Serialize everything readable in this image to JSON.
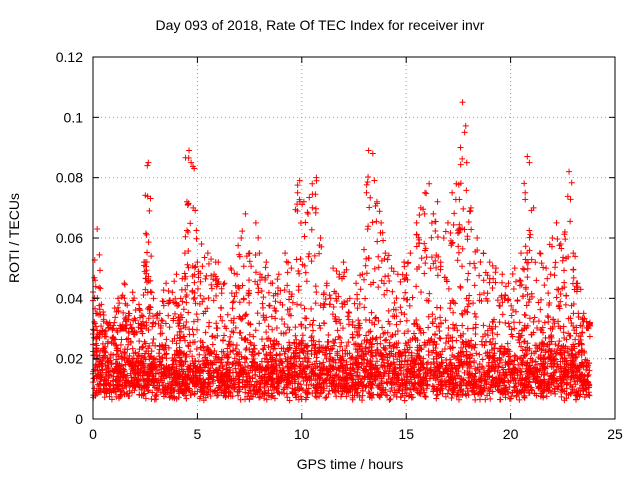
{
  "chart_data": {
    "type": "scatter",
    "title": "Day 093 of 2018, Rate Of TEC Index for receiver invr",
    "xlabel": "GPS time / hours",
    "ylabel": "ROTI / TECUs",
    "xlim": [
      0,
      25
    ],
    "ylim": [
      0,
      0.12
    ],
    "xticks": [
      0,
      5,
      10,
      15,
      20,
      25
    ],
    "xtick_labels": [
      "0",
      "5",
      "10",
      "15",
      "20",
      "25"
    ],
    "yticks": [
      0,
      0.02,
      0.04,
      0.06,
      0.08,
      0.1,
      0.12
    ],
    "ytick_labels": [
      "0",
      "0.02",
      "0.04",
      "0.06",
      "0.08",
      "0.1",
      "0.12"
    ],
    "grid": true,
    "marker": "+",
    "color": "#ff0000",
    "series": [
      {
        "name": "ROTI",
        "points": [
          [
            0.0,
            0.015
          ],
          [
            0.1,
            0.046
          ],
          [
            0.2,
            0.063
          ],
          [
            0.3,
            0.028
          ],
          [
            0.4,
            0.038
          ],
          [
            0.6,
            0.022
          ],
          [
            0.8,
            0.032
          ],
          [
            1.0,
            0.025
          ],
          [
            1.2,
            0.04
          ],
          [
            1.4,
            0.03
          ],
          [
            1.5,
            0.045
          ],
          [
            1.7,
            0.035
          ],
          [
            1.9,
            0.042
          ],
          [
            2.0,
            0.028
          ],
          [
            2.2,
            0.038
          ],
          [
            2.4,
            0.034
          ],
          [
            2.5,
            0.052
          ],
          [
            2.6,
            0.084
          ],
          [
            2.65,
            0.085
          ],
          [
            2.7,
            0.069
          ],
          [
            2.9,
            0.04
          ],
          [
            3.2,
            0.035
          ],
          [
            3.5,
            0.045
          ],
          [
            3.8,
            0.042
          ],
          [
            4.0,
            0.048
          ],
          [
            4.2,
            0.04
          ],
          [
            4.4,
            0.055
          ],
          [
            4.5,
            0.072
          ],
          [
            4.6,
            0.089
          ],
          [
            4.7,
            0.085
          ],
          [
            4.8,
            0.07
          ],
          [
            5.0,
            0.052
          ],
          [
            5.2,
            0.058
          ],
          [
            5.5,
            0.055
          ],
          [
            5.8,
            0.048
          ],
          [
            6.0,
            0.052
          ],
          [
            6.3,
            0.045
          ],
          [
            6.6,
            0.05
          ],
          [
            6.9,
            0.048
          ],
          [
            7.1,
            0.06
          ],
          [
            7.3,
            0.068
          ],
          [
            7.5,
            0.055
          ],
          [
            7.8,
            0.065
          ],
          [
            8.0,
            0.048
          ],
          [
            8.3,
            0.052
          ],
          [
            8.6,
            0.045
          ],
          [
            8.9,
            0.048
          ],
          [
            9.2,
            0.055
          ],
          [
            9.5,
            0.05
          ],
          [
            9.8,
            0.075
          ],
          [
            9.9,
            0.079
          ],
          [
            10.1,
            0.072
          ],
          [
            10.3,
            0.068
          ],
          [
            10.5,
            0.078
          ],
          [
            10.7,
            0.08
          ],
          [
            10.9,
            0.06
          ],
          [
            11.2,
            0.045
          ],
          [
            11.5,
            0.05
          ],
          [
            11.8,
            0.048
          ],
          [
            12.0,
            0.052
          ],
          [
            12.3,
            0.04
          ],
          [
            12.6,
            0.045
          ],
          [
            12.9,
            0.048
          ],
          [
            13.1,
            0.075
          ],
          [
            13.2,
            0.089
          ],
          [
            13.4,
            0.088
          ],
          [
            13.6,
            0.072
          ],
          [
            13.8,
            0.065
          ],
          [
            14.0,
            0.055
          ],
          [
            14.3,
            0.05
          ],
          [
            14.6,
            0.048
          ],
          [
            14.9,
            0.052
          ],
          [
            15.2,
            0.055
          ],
          [
            15.5,
            0.065
          ],
          [
            15.7,
            0.07
          ],
          [
            15.9,
            0.075
          ],
          [
            16.1,
            0.078
          ],
          [
            16.3,
            0.068
          ],
          [
            16.5,
            0.072
          ],
          [
            16.8,
            0.06
          ],
          [
            17.0,
            0.065
          ],
          [
            17.2,
            0.075
          ],
          [
            17.4,
            0.078
          ],
          [
            17.6,
            0.09
          ],
          [
            17.7,
            0.105
          ],
          [
            17.8,
            0.095
          ],
          [
            17.9,
            0.085
          ],
          [
            18.1,
            0.07
          ],
          [
            18.4,
            0.06
          ],
          [
            18.7,
            0.055
          ],
          [
            19.0,
            0.052
          ],
          [
            19.3,
            0.05
          ],
          [
            19.6,
            0.048
          ],
          [
            19.9,
            0.045
          ],
          [
            20.2,
            0.05
          ],
          [
            20.5,
            0.055
          ],
          [
            20.7,
            0.075
          ],
          [
            20.8,
            0.087
          ],
          [
            20.9,
            0.085
          ],
          [
            21.1,
            0.07
          ],
          [
            21.4,
            0.055
          ],
          [
            21.7,
            0.05
          ],
          [
            22.0,
            0.06
          ],
          [
            22.2,
            0.065
          ],
          [
            22.4,
            0.058
          ],
          [
            22.6,
            0.062
          ],
          [
            22.8,
            0.082
          ],
          [
            23.0,
            0.055
          ],
          [
            23.2,
            0.045
          ],
          [
            23.5,
            0.035
          ],
          [
            23.8,
            0.032
          ]
        ],
        "dense_band": {
          "x_range": [
            0.0,
            23.8
          ],
          "y_range": [
            0.004,
            0.035
          ],
          "note": "dense cluster of + markers spanning the whole day"
        }
      }
    ]
  }
}
